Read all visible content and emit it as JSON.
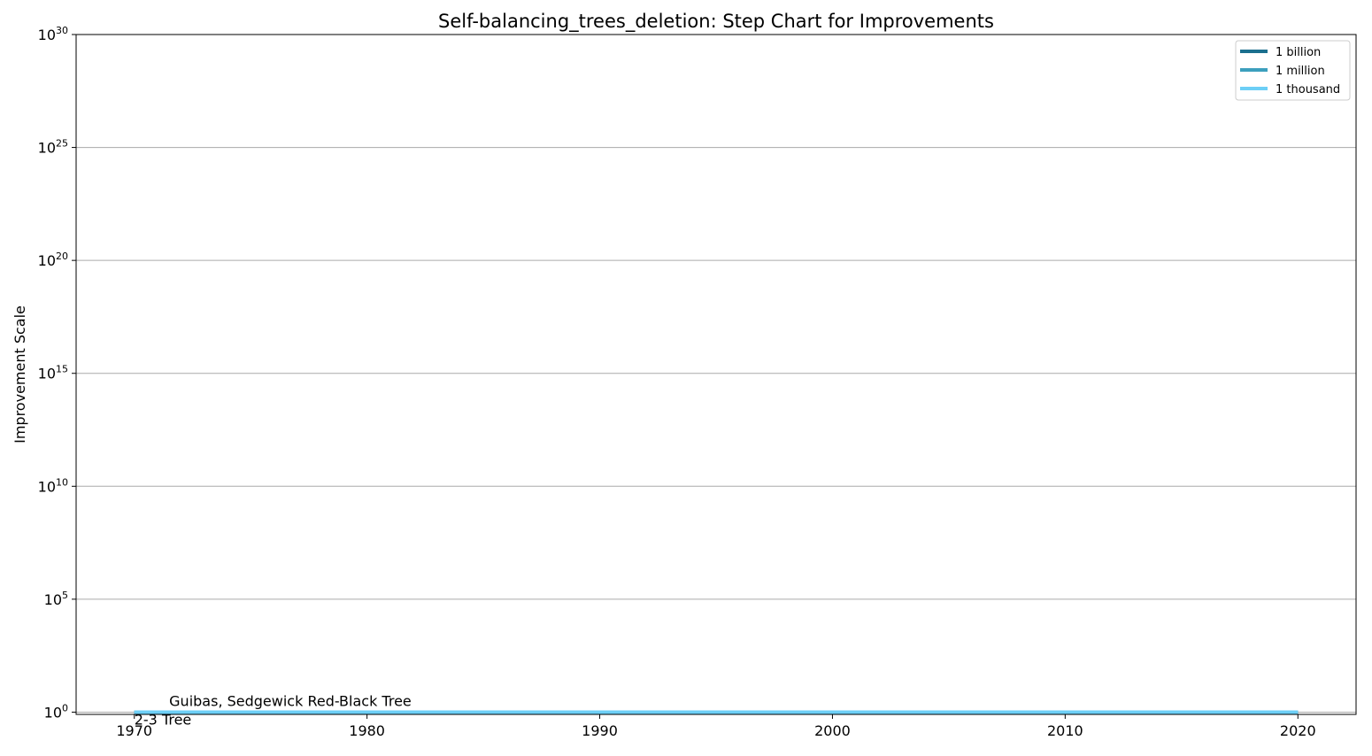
{
  "chart_data": {
    "type": "line",
    "title": "Self-balancing_trees_deletion: Step Chart for Improvements",
    "xlabel": "",
    "ylabel": "Improvement Scale",
    "x_ticks": [
      1970,
      1980,
      1990,
      2000,
      2010,
      2020
    ],
    "xlim": [
      1967.5,
      2022.5
    ],
    "y_scale": "log",
    "y_ticks": [
      {
        "value": 0,
        "base": "10",
        "exp": "0"
      },
      {
        "value": 5,
        "base": "10",
        "exp": "5"
      },
      {
        "value": 10,
        "base": "10",
        "exp": "10"
      },
      {
        "value": 15,
        "base": "10",
        "exp": "15"
      },
      {
        "value": 20,
        "base": "10",
        "exp": "20"
      },
      {
        "value": 25,
        "base": "10",
        "exp": "25"
      },
      {
        "value": 30,
        "base": "10",
        "exp": "30"
      }
    ],
    "ylim_log10": [
      -0.1,
      30
    ],
    "grid": "horizontal",
    "legend_position": "top-right",
    "series": [
      {
        "name": "1 billion",
        "color": "#1b6f8e",
        "x": [
          1970,
          2020
        ],
        "y": [
          1,
          1
        ]
      },
      {
        "name": "1 million",
        "color": "#3c9fbd",
        "x": [
          1970,
          2020
        ],
        "y": [
          1,
          1
        ]
      },
      {
        "name": "1 thousand",
        "color": "#6dcff6",
        "x": [
          1970,
          2020
        ],
        "y": [
          1,
          1
        ]
      }
    ],
    "annotations": [
      {
        "text": "2-3 Tree",
        "x": 1970,
        "y": 1,
        "placement": "below"
      },
      {
        "text": "Guibas, Sedgewick Red-Black Tree",
        "x": 1971.5,
        "y": 1,
        "placement": "above"
      }
    ]
  }
}
